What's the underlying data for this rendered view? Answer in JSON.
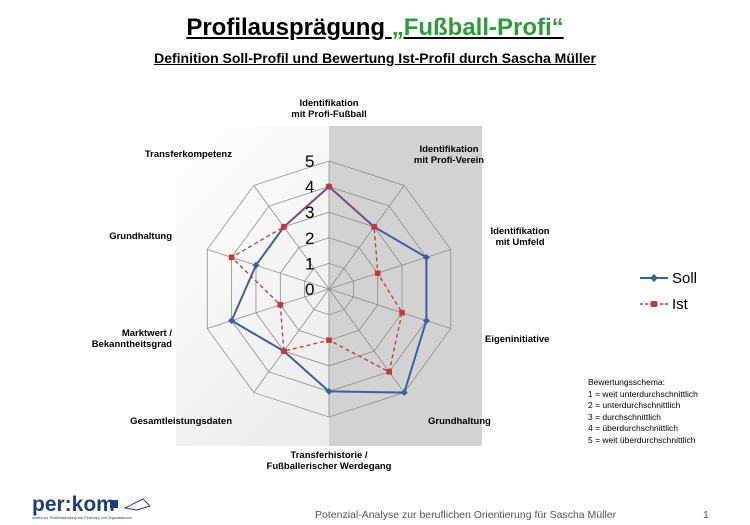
{
  "header": {
    "title_prefix": "Profilausprägung",
    "title_highlight": "„Fußball-Profi“",
    "subtitle": "Definition Soll-Profil und Bewertung Ist-Profil durch Sascha Müller"
  },
  "chart_data": {
    "type": "radar",
    "axes": [
      "Identifikation\nmit Profi-Fußball",
      "Identifikation\nmit Profi-Verein",
      "Identifikation\nmit Umfeld",
      "Eigeninitiative",
      "Grundhaltung",
      "Transferhistorie /\nFußballerischer Werdegang",
      "Gesamtleistungsdaten",
      "Marktwert /\nBekanntheitsgrad",
      "Grundhaltung",
      "Transferkompetenz"
    ],
    "range": [
      0,
      5
    ],
    "ticks": [
      "0",
      "1",
      "2",
      "3",
      "4",
      "5"
    ],
    "series": [
      {
        "name": "Soll",
        "values": [
          4,
          3,
          4,
          4,
          5,
          4,
          3,
          4,
          3,
          3
        ],
        "color": "#3e5f9e",
        "marker": "diamond",
        "dashed": false
      },
      {
        "name": "Ist",
        "values": [
          4,
          3,
          2,
          3,
          4,
          2,
          3,
          2,
          4,
          3
        ],
        "color": "#c0393b",
        "marker": "square",
        "dashed": true
      }
    ],
    "legend_position": "right"
  },
  "scheme": {
    "title": "Bewertungsschema:",
    "items": [
      "1 = weit unterdurchschnittlich",
      "2 = unterdurchschnittlich",
      "3 = durchschnittlich",
      "4 = überdurchschnittlich",
      "5 = weit überdurchschnittlich"
    ]
  },
  "logo": {
    "text": "per:kom",
    "subtext": "Institut zur Profilentwicklung von Personen und Organisationen"
  },
  "footer": {
    "text": "Potenzial-Analyse zur beruflichen Orientierung für Sascha Müller",
    "page": "1"
  }
}
